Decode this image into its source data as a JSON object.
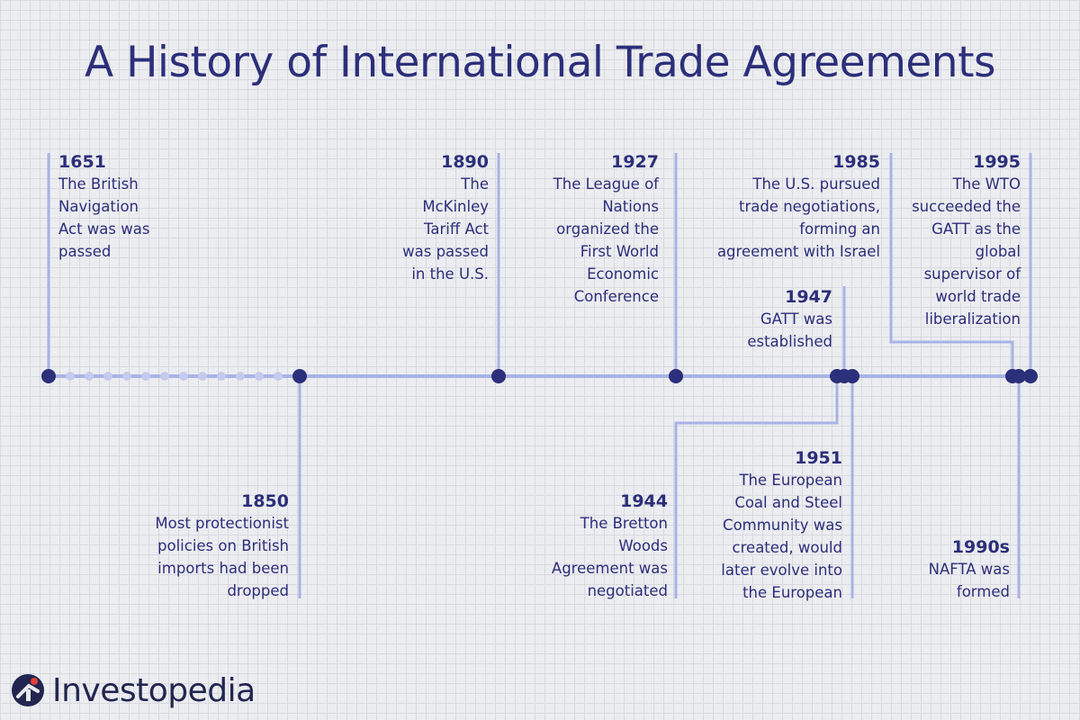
{
  "title": "A History of International Trade Agreements",
  "brand": {
    "name": "Investopedia",
    "icon": "investopedia-logo-icon"
  },
  "colors": {
    "text": "#2c2f7a",
    "line": "#a9b3e6",
    "dot": "#2c2f7a",
    "dot_light": "#c5cbee"
  },
  "events": [
    {
      "year": "1651",
      "text": "The British\nNavigation\nAct was was\npassed"
    },
    {
      "year": "1850",
      "text": "Most protectionist\npolicies on British\nimports had been\ndropped"
    },
    {
      "year": "1890",
      "text": "The\nMcKinley\nTariff Act\nwas passed\nin the U.S."
    },
    {
      "year": "1927",
      "text": "The League of\nNations\norganized the\nFirst World\nEconomic\nConference"
    },
    {
      "year": "1944",
      "text": "The Bretton\nWoods\nAgreement was\nnegotiated"
    },
    {
      "year": "1947",
      "text": "GATT was\nestablished"
    },
    {
      "year": "1951",
      "text": "The European\nCoal and Steel\nCommunity was\ncreated, would\nlater evolve into\nthe European"
    },
    {
      "year": "1985",
      "text": "The U.S. pursued\ntrade negotiations,\nforming an\nagreement with Israel"
    },
    {
      "year": "1990s",
      "text": "NAFTA was\nformed"
    },
    {
      "year": "1995",
      "text": "The WTO\nsucceeded the\nGATT as the\nglobal\nsupervisor of\nworld trade\nliberalization"
    }
  ]
}
